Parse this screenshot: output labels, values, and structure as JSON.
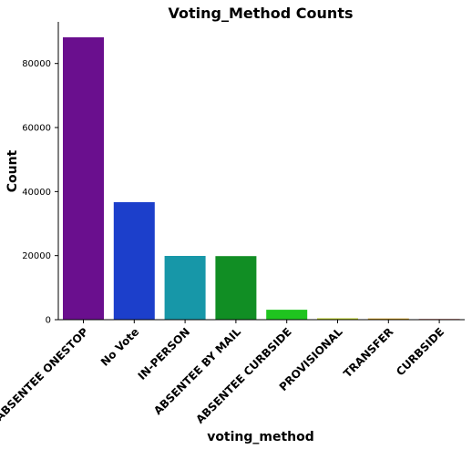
{
  "chart_data": {
    "type": "bar",
    "title": "Voting_Method Counts",
    "xlabel": "voting_method",
    "ylabel": "Count",
    "categories": [
      "ABSENTEE ONESTOP",
      "No Vote",
      "IN-PERSON",
      "ABSENTEE BY MAIL",
      "ABSENTEE CURBSIDE",
      "PROVISIONAL",
      "TRANSFER",
      "CURBSIDE"
    ],
    "values": [
      88200,
      36700,
      19900,
      19850,
      3100,
      420,
      380,
      200
    ],
    "colors": [
      "#6a0f8e",
      "#1c3fcb",
      "#1797a8",
      "#118e24",
      "#1fc41f",
      "#b8cc20",
      "#d4a018",
      "#c02a14"
    ],
    "ylim": [
      0,
      93000
    ],
    "yticks": [
      0,
      20000,
      40000,
      60000,
      80000
    ],
    "ytick_labels": [
      "0",
      "20000",
      "40000",
      "60000",
      "80000"
    ],
    "grid": false,
    "legend": "none"
  }
}
